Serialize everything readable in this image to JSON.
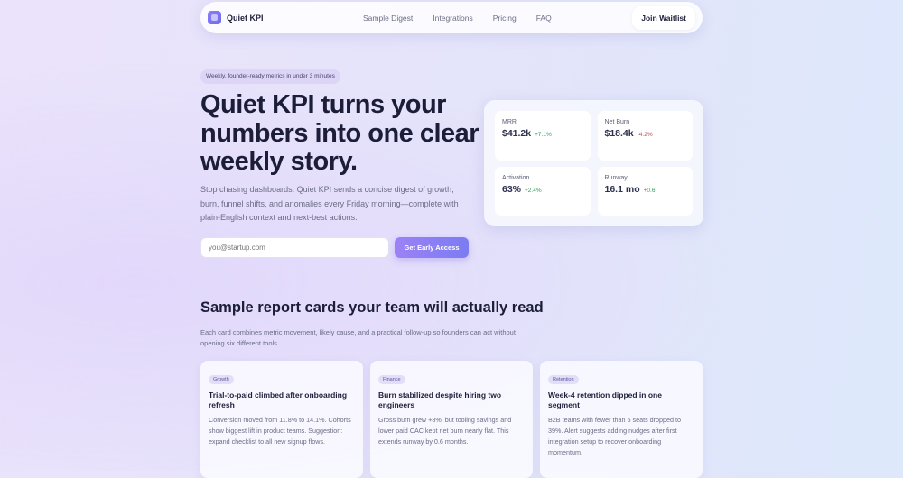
{
  "nav": {
    "brand": "Quiet KPI",
    "links": [
      "Sample Digest",
      "Integrations",
      "Pricing",
      "FAQ"
    ],
    "cta": "Join Waitlist"
  },
  "hero": {
    "badge": "Weekly, founder-ready metrics in under 3 minutes",
    "title": "Quiet KPI turns your numbers into one clear weekly story.",
    "lead": "Stop chasing dashboards. Quiet KPI sends a concise digest of growth, burn, funnel shifts, and anomalies every Friday morning—complete with plain-English context and next-best actions.",
    "email_placeholder": "you@startup.com",
    "cta": "Get Early Access"
  },
  "metrics": [
    {
      "label": "MRR",
      "value": "$41.2k",
      "delta": "+7.1%",
      "color": "#2f9a5e"
    },
    {
      "label": "Net Burn",
      "value": "$18.4k",
      "delta": "-4.2%",
      "color": "#c0465a"
    },
    {
      "label": "Activation",
      "value": "63%",
      "delta": "+2.4%",
      "color": "#2f9a5e"
    },
    {
      "label": "Runway",
      "value": "16.1 mo",
      "delta": "+0.6",
      "color": "#2f9a5e"
    }
  ],
  "section": {
    "title": "Sample report cards your team will actually read",
    "desc": "Each card combines metric movement, likely cause, and a practical follow-up so founders can act without opening six different tools."
  },
  "cards": [
    {
      "tag": "Growth",
      "title": "Trial-to-paid climbed after onboarding refresh",
      "body": "Conversion moved from 11.8% to 14.1%. Cohorts show biggest lift in product teams. Suggestion: expand checklist to all new signup flows."
    },
    {
      "tag": "Finance",
      "title": "Burn stabilized despite hiring two engineers",
      "body": "Gross burn grew +8%, but tooling savings and lower paid CAC kept net burn nearly flat. This extends runway by 0.6 months."
    },
    {
      "tag": "Retention",
      "title": "Week-4 retention dipped in one segment",
      "body": "B2B teams with fewer than 5 seats dropped to 39%. Alert suggests adding nudges after first integration setup to recover onboarding momentum."
    }
  ]
}
